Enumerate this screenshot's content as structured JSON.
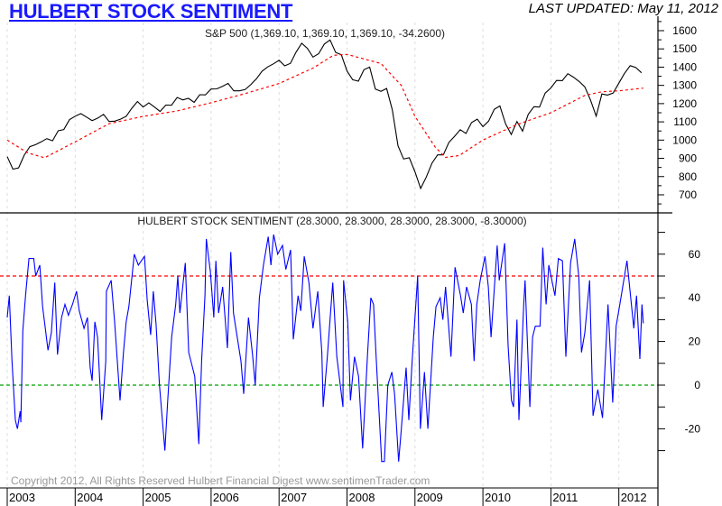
{
  "header": {
    "title": "HULBERT STOCK SENTIMENT",
    "last_updated": "LAST UPDATED:  May 11, 2012"
  },
  "footer": {
    "copyright": "Copyright 2012, All Rights Reserved  Hulbert Financial Digest  www.sentimenTrader.com"
  },
  "colors": {
    "price": "#000000",
    "ma": "#ff0000",
    "sentiment": "#0000ff",
    "upper_ref": "#ff0000",
    "zero_ref": "#00a000",
    "title": "#1a1aff"
  },
  "chart_data": [
    {
      "type": "line",
      "title": "S&P 500 (1,369.10, 1,369.10, 1,369.10, -34.2600)",
      "ylim": [
        600,
        1650
      ],
      "yticks": [
        700,
        800,
        900,
        1000,
        1100,
        1200,
        1300,
        1400,
        1500,
        1600
      ],
      "yticklabels": [
        "700",
        "800",
        "900",
        "1000",
        "1100",
        "1200",
        "1300",
        "1400",
        "1500",
        "1600"
      ],
      "xlim": [
        2003.0,
        2012.5
      ],
      "grid": "vertical dashed at years",
      "series": [
        {
          "name": "S&P 500",
          "x_start": 2003.0,
          "x_step_years": 0.0833,
          "values": [
            909,
            841,
            848,
            917,
            964,
            975,
            990,
            1008,
            996,
            1051,
            1058,
            1112,
            1131,
            1145,
            1126,
            1107,
            1121,
            1141,
            1102,
            1104,
            1115,
            1130,
            1174,
            1212,
            1181,
            1204,
            1181,
            1157,
            1192,
            1191,
            1234,
            1220,
            1229,
            1207,
            1249,
            1248,
            1280,
            1281,
            1295,
            1311,
            1270,
            1270,
            1277,
            1304,
            1336,
            1378,
            1401,
            1418,
            1438,
            1407,
            1421,
            1482,
            1531,
            1503,
            1455,
            1474,
            1527,
            1549,
            1481,
            1468,
            1379,
            1331,
            1323,
            1386,
            1400,
            1280,
            1267,
            1283,
            1166,
            969,
            896,
            903,
            826,
            735,
            798,
            873,
            919,
            919,
            987,
            1021,
            1057,
            1036,
            1096,
            1115,
            1074,
            1104,
            1169,
            1187,
            1089,
            1031,
            1102,
            1049,
            1141,
            1183,
            1181,
            1258,
            1286,
            1327,
            1326,
            1364,
            1345,
            1321,
            1292,
            1219,
            1131,
            1253,
            1247,
            1258,
            1312,
            1366,
            1408,
            1398,
            1369
          ]
        },
        {
          "name": "Moving Average",
          "style": "dashed",
          "x": [
            2003.0,
            2003.3,
            2003.55,
            2004.0,
            2004.5,
            2005.0,
            2005.5,
            2006.0,
            2006.5,
            2007.0,
            2007.5,
            2007.8,
            2008.0,
            2008.5,
            2008.8,
            2009.0,
            2009.3,
            2009.45,
            2009.65,
            2010.0,
            2010.5,
            2011.0,
            2011.5,
            2011.75,
            2012.0,
            2012.36
          ],
          "values": [
            1000,
            930,
            903,
            990,
            1090,
            1130,
            1160,
            1205,
            1255,
            1310,
            1395,
            1465,
            1470,
            1420,
            1300,
            1130,
            960,
            905,
            915,
            1000,
            1085,
            1150,
            1245,
            1265,
            1270,
            1285
          ]
        }
      ]
    },
    {
      "type": "line",
      "title": "HULBERT STOCK SENTIMENT (28.3000, 28.3000, 28.3000, 28.3000, -8.30000)",
      "ylim": [
        -38,
        75
      ],
      "yticks": [
        -30,
        -20,
        -10,
        0,
        10,
        20,
        30,
        40,
        50,
        60,
        70
      ],
      "yticklabels": [
        "-20",
        "0",
        "20",
        "40",
        "60"
      ],
      "ylabel_values": [
        -20,
        0,
        20,
        40,
        60
      ],
      "reference_lines": [
        {
          "value": 50,
          "color": "red",
          "style": "dashed"
        },
        {
          "value": 0,
          "color": "green",
          "style": "dashed"
        }
      ],
      "xticklabels": [
        "2003",
        "2004",
        "2005",
        "2006",
        "2007",
        "2008",
        "2009",
        "2010",
        "2011",
        "2012"
      ],
      "series": [
        {
          "name": "Hulbert Stock Sentiment",
          "x": [
            2003.0,
            2003.03,
            2003.07,
            2003.12,
            2003.15,
            2003.19,
            2003.2,
            2003.23,
            2003.27,
            2003.32,
            2003.39,
            2003.42,
            2003.48,
            2003.52,
            2003.6,
            2003.65,
            2003.7,
            2003.74,
            2003.8,
            2003.85,
            2003.9,
            2003.96,
            2004.02,
            2004.06,
            2004.13,
            2004.18,
            2004.22,
            2004.25,
            2004.29,
            2004.33,
            2004.39,
            2004.45,
            2004.46,
            2004.53,
            2004.58,
            2004.66,
            2004.71,
            2004.75,
            2004.79,
            2004.87,
            2004.93,
            2005.02,
            2005.06,
            2005.11,
            2005.15,
            2005.19,
            2005.24,
            2005.32,
            2005.36,
            2005.42,
            2005.48,
            2005.51,
            2005.54,
            2005.62,
            2005.67,
            2005.76,
            2005.82,
            2005.86,
            2005.91,
            2005.93,
            2005.99,
            2006.04,
            2006.07,
            2006.11,
            2006.17,
            2006.24,
            2006.29,
            2006.33,
            2006.44,
            2006.48,
            2006.55,
            2006.61,
            2006.65,
            2006.71,
            2006.77,
            2006.84,
            2006.88,
            2006.92,
            2006.98,
            2007.05,
            2007.1,
            2007.17,
            2007.21,
            2007.28,
            2007.32,
            2007.37,
            2007.44,
            2007.5,
            2007.57,
            2007.63,
            2007.65,
            2007.71,
            2007.79,
            2007.85,
            2007.94,
            2007.95,
            2008.01,
            2008.05,
            2008.11,
            2008.17,
            2008.23,
            2008.3,
            2008.35,
            2008.39,
            2008.43,
            2008.51,
            2008.55,
            2008.6,
            2008.66,
            2008.7,
            2008.76,
            2008.8,
            2008.87,
            2008.91,
            2008.96,
            2009.04,
            2009.08,
            2009.14,
            2009.19,
            2009.27,
            2009.31,
            2009.37,
            2009.41,
            2009.45,
            2009.53,
            2009.59,
            2009.67,
            2009.71,
            2009.76,
            2009.83,
            2009.87,
            2009.91,
            2009.96,
            2010.03,
            2010.08,
            2010.12,
            2010.21,
            2010.24,
            2010.32,
            2010.37,
            2010.42,
            2010.45,
            2010.5,
            2010.53,
            2010.6,
            2010.62,
            2010.69,
            2010.73,
            2010.77,
            2010.84,
            2010.88,
            2010.93,
            2010.97,
            2011.06,
            2011.11,
            2011.17,
            2011.22,
            2011.29,
            2011.35,
            2011.41,
            2011.45,
            2011.5,
            2011.57,
            2011.62,
            2011.69,
            2011.76,
            2011.84,
            2011.91,
            2011.96,
            2012.03,
            2012.12,
            2012.22,
            2012.26,
            2012.31,
            2012.34,
            2012.36
          ],
          "values": [
            31,
            41,
            11,
            -16,
            -20,
            -12,
            -17,
            25,
            41,
            58,
            58,
            50,
            55,
            36,
            16,
            24,
            47,
            14,
            31,
            37,
            32,
            37,
            43,
            34,
            26,
            31,
            8,
            2,
            29,
            22,
            -16,
            11,
            43,
            48,
            29,
            -7,
            15,
            29,
            36,
            60,
            55,
            59,
            39,
            23,
            43,
            28,
            0,
            -30,
            -8,
            22,
            37,
            50,
            33,
            56,
            15,
            4,
            -27,
            11,
            41,
            67,
            52,
            31,
            57,
            33,
            45,
            17,
            61,
            33,
            11,
            -4,
            31,
            14,
            0,
            40,
            55,
            68,
            55,
            69,
            60,
            64,
            53,
            62,
            21,
            41,
            34,
            59,
            47,
            26,
            43,
            15,
            -10,
            13,
            47,
            13,
            -10,
            48,
            29,
            -7,
            13,
            4,
            -29,
            13,
            40,
            37,
            12,
            -35,
            -35,
            0,
            6,
            -4,
            -35,
            -20,
            8,
            -16,
            12,
            50,
            -20,
            6,
            -20,
            22,
            36,
            40,
            30,
            45,
            13,
            54,
            41,
            33,
            45,
            37,
            11,
            37,
            48,
            59,
            45,
            22,
            64,
            48,
            65,
            18,
            -7,
            -10,
            30,
            -16,
            37,
            48,
            -10,
            22,
            27,
            27,
            63,
            37,
            55,
            41,
            58,
            57,
            13,
            56,
            67,
            50,
            15,
            24,
            48,
            -14,
            -2,
            -15,
            37,
            -8,
            27,
            40,
            57,
            26,
            41,
            12,
            37,
            28.3
          ]
        }
      ]
    }
  ]
}
